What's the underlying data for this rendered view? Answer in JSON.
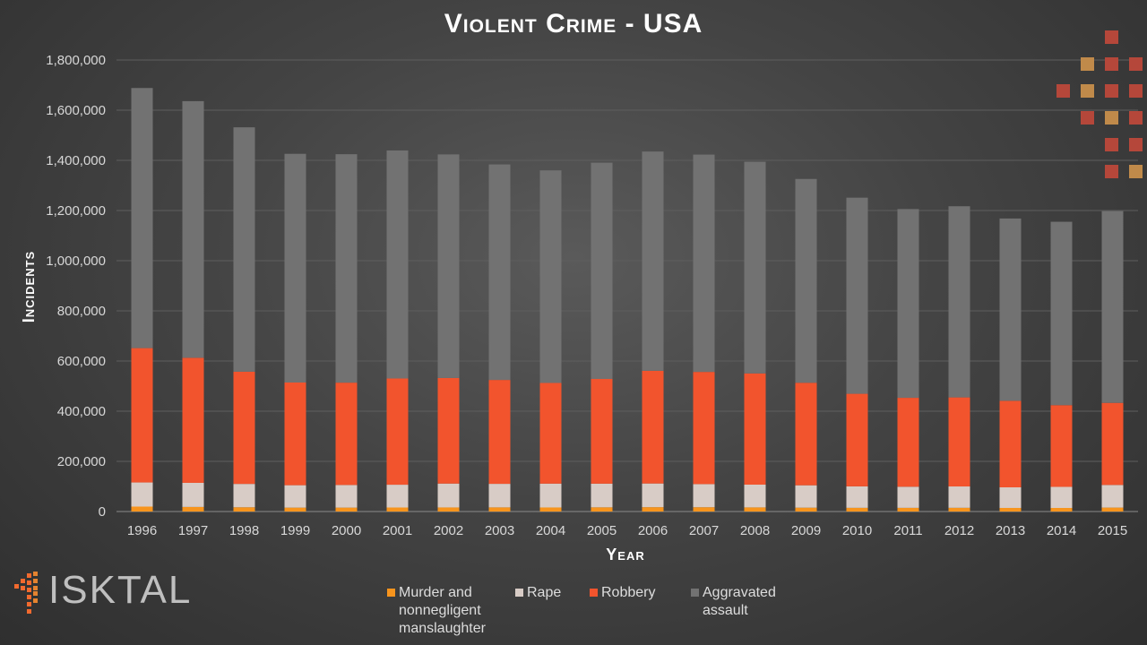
{
  "chart_data": {
    "type": "bar",
    "stacked": true,
    "title": "Violent Crime - USA",
    "xlabel": "Year",
    "ylabel": "Incidents",
    "ylim": [
      0,
      1800000
    ],
    "yticks": [
      "0",
      "200,000",
      "400,000",
      "600,000",
      "800,000",
      "1,000,000",
      "1,200,000",
      "1,400,000",
      "1,600,000",
      "1,800,000"
    ],
    "categories": [
      "1996",
      "1997",
      "1998",
      "1999",
      "2000",
      "2001",
      "2002",
      "2003",
      "2004",
      "2005",
      "2006",
      "2007",
      "2008",
      "2009",
      "2010",
      "2011",
      "2012",
      "2013",
      "2014",
      "2015"
    ],
    "series": [
      {
        "name": "Murder and nonnegligent manslaughter",
        "color": "#f7941d",
        "values": [
          19650,
          18210,
          16970,
          15520,
          15590,
          16040,
          16230,
          16530,
          16150,
          16740,
          17310,
          17130,
          16440,
          15400,
          14720,
          14660,
          14830,
          14320,
          14250,
          15700
        ]
      },
      {
        "name": "Rape",
        "color": "#d8ccc6",
        "values": [
          96250,
          96150,
          93140,
          89410,
          90180,
          90860,
          95240,
          93880,
          95090,
          94350,
          94470,
          92160,
          90750,
          89240,
          85590,
          84180,
          85140,
          82110,
          84040,
          90190
        ]
      },
      {
        "name": "Robbery",
        "color": "#f2542d",
        "values": [
          535590,
          498530,
          447190,
          409370,
          408020,
          423560,
          420810,
          414240,
          401470,
          417440,
          449250,
          447320,
          443560,
          408740,
          369090,
          354520,
          355050,
          345030,
          325800,
          327370
        ]
      },
      {
        "name": "Aggravated assault",
        "color": "#727272",
        "values": [
          1037050,
          1023200,
          974400,
          911740,
          910740,
          909020,
          891410,
          859030,
          847380,
          862220,
          874100,
          866360,
          843680,
          812510,
          781840,
          752420,
          762010,
          726780,
          731090,
          764450
        ]
      }
    ]
  },
  "legend": {
    "items": [
      {
        "label": "Murder and nonnegligent manslaughter",
        "color": "#f7941d"
      },
      {
        "label": "Rape",
        "color": "#d8ccc6"
      },
      {
        "label": "Robbery",
        "color": "#f2542d"
      },
      {
        "label": "Aggravated assault",
        "color": "#727272"
      }
    ]
  },
  "logo": {
    "text": "ISKTAL"
  }
}
